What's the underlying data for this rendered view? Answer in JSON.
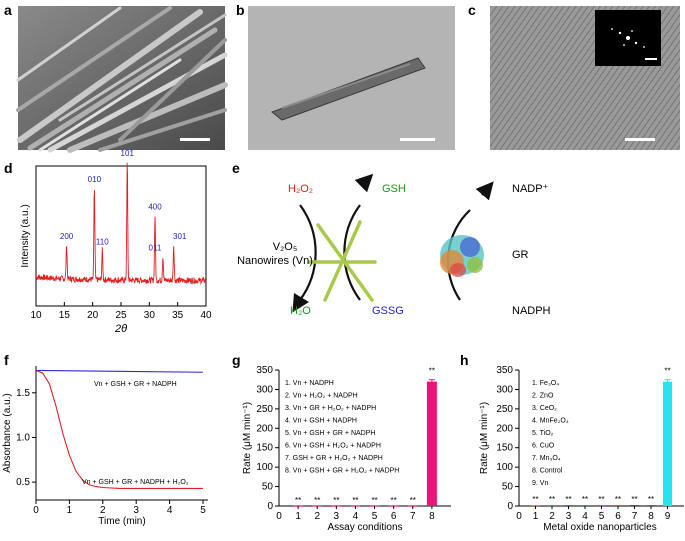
{
  "panels": {
    "a": {
      "letter": "a"
    },
    "b": {
      "letter": "b"
    },
    "c": {
      "letter": "c"
    },
    "d": {
      "letter": "d"
    },
    "e": {
      "letter": "e"
    },
    "f": {
      "letter": "f"
    },
    "g": {
      "letter": "g"
    },
    "h": {
      "letter": "h"
    }
  },
  "scheme": {
    "h2o2": "H₂O₂",
    "h2o": "H₂O",
    "gsh": "GSH",
    "gssg": "GSSG",
    "nadp_plus": "NADP⁺",
    "nadph": "NADPH",
    "gr": "GR",
    "vn_line1": "V₂O₅",
    "vn_line2": "Nanowires (Vn)",
    "colors": {
      "h2o2": "#e0201b",
      "h2o": "#1a9a1a",
      "gsh": "#1a9a1a",
      "gssg": "#1f1fd0"
    }
  },
  "chart_data": [
    {
      "id": "d",
      "type": "line",
      "xlabel": "2θ",
      "ylabel": "Intensity (a.u.)",
      "xlim": [
        10,
        40
      ],
      "xticks": [
        10,
        15,
        20,
        25,
        30,
        35,
        40
      ],
      "peaks": [
        {
          "x": 15.4,
          "height": 0.3,
          "label": "200"
        },
        {
          "x": 20.3,
          "height": 0.78,
          "label": "010"
        },
        {
          "x": 21.7,
          "height": 0.25,
          "label": "110"
        },
        {
          "x": 26.1,
          "height": 1.0,
          "label": "101"
        },
        {
          "x": 31.0,
          "height": 0.55,
          "label": "400"
        },
        {
          "x": 32.4,
          "height": 0.2,
          "label": "011"
        },
        {
          "x": 34.3,
          "height": 0.3,
          "label": "301"
        }
      ],
      "line_color": "#e02020",
      "label_color": "#2020c0"
    },
    {
      "id": "f",
      "type": "line",
      "xlabel": "Time (min)",
      "ylabel": "Absorbance (a.u.)",
      "xlim": [
        0,
        5
      ],
      "ylim": [
        0.3,
        1.8
      ],
      "xticks": [
        0,
        1,
        2,
        3,
        4,
        5
      ],
      "yticks": [
        0.5,
        1.0,
        1.5
      ],
      "ytick_labels": [
        "0.5",
        "1.0",
        "1.5"
      ],
      "series": [
        {
          "name": "Vn + GSH + GR + NADPH",
          "color": "#2a2ad0",
          "x": [
            0,
            5
          ],
          "y": [
            1.75,
            1.73
          ]
        },
        {
          "name": "Vn + GSH + GR + NADPH + H₂O₂",
          "color": "#e02020",
          "x": [
            0,
            0.2,
            0.4,
            0.6,
            0.8,
            1.0,
            1.2,
            1.4,
            1.6,
            1.8,
            2.0,
            2.5,
            3,
            4,
            5
          ],
          "y": [
            1.75,
            1.72,
            1.6,
            1.35,
            1.05,
            0.8,
            0.62,
            0.52,
            0.47,
            0.45,
            0.44,
            0.43,
            0.43,
            0.43,
            0.43
          ]
        }
      ]
    },
    {
      "id": "g",
      "type": "bar",
      "xlabel": "Assay conditions",
      "ylabel": "Rate (μM min⁻¹)",
      "ylim": [
        0,
        350
      ],
      "yticks": [
        0,
        50,
        100,
        150,
        200,
        250,
        300,
        350
      ],
      "categories": [
        "1",
        "2",
        "3",
        "4",
        "5",
        "6",
        "7",
        "8"
      ],
      "values": [
        0.5,
        0.5,
        0.5,
        0.5,
        0.5,
        0.5,
        0.5,
        320
      ],
      "errors": [
        0,
        0,
        0,
        0,
        0,
        0,
        0,
        5
      ],
      "significance": [
        "**",
        "**",
        "**",
        "**",
        "**",
        "**",
        "**",
        "**"
      ],
      "bar_color": "#e8147a",
      "legend": [
        "1. Vn + NADPH",
        "2. Vn + H₂O₂ + NADPH",
        "3. Vn + GR + H₂O₂ + NADPH",
        "4. Vn + GSH + NADPH",
        "5. Vn + GSH + GR + NADPH",
        "6. Vn + GSH + H₂O₂ + NADPH",
        "7. GSH + GR + H₂O₂ + NADPH",
        "8. Vn + GSH + GR + H₂O₂ + NADPH"
      ]
    },
    {
      "id": "h",
      "type": "bar",
      "xlabel": "Metal oxide nanoparticles",
      "ylabel": "Rate (μM min⁻¹)",
      "ylim": [
        0,
        350
      ],
      "yticks": [
        0,
        50,
        100,
        150,
        200,
        250,
        300,
        350
      ],
      "categories": [
        "1",
        "2",
        "3",
        "4",
        "5",
        "6",
        "7",
        "8",
        "9"
      ],
      "values": [
        2,
        2,
        2,
        2,
        2,
        2,
        2,
        2,
        320
      ],
      "errors": [
        0,
        0,
        0,
        0,
        0,
        0,
        0,
        0,
        5
      ],
      "significance": [
        "**",
        "**",
        "**",
        "**",
        "**",
        "**",
        "**",
        "**",
        "**"
      ],
      "bar_color": "#22e5ee",
      "small_bar_colors": [
        "#c07a18",
        "#1f8a3a",
        "#3030d0",
        "#207070",
        "#b020b0",
        "#d02020",
        "#222222",
        "#8a2020",
        "#22e5ee"
      ],
      "legend": [
        "1. Fe₃O₄",
        "2. ZnO",
        "3. CeO₂",
        "4. MnFe₂O₄",
        "5. TiO₂",
        "6. CuO",
        "7. Mn₃O₄",
        "8. Control",
        "9. Vn"
      ]
    }
  ]
}
